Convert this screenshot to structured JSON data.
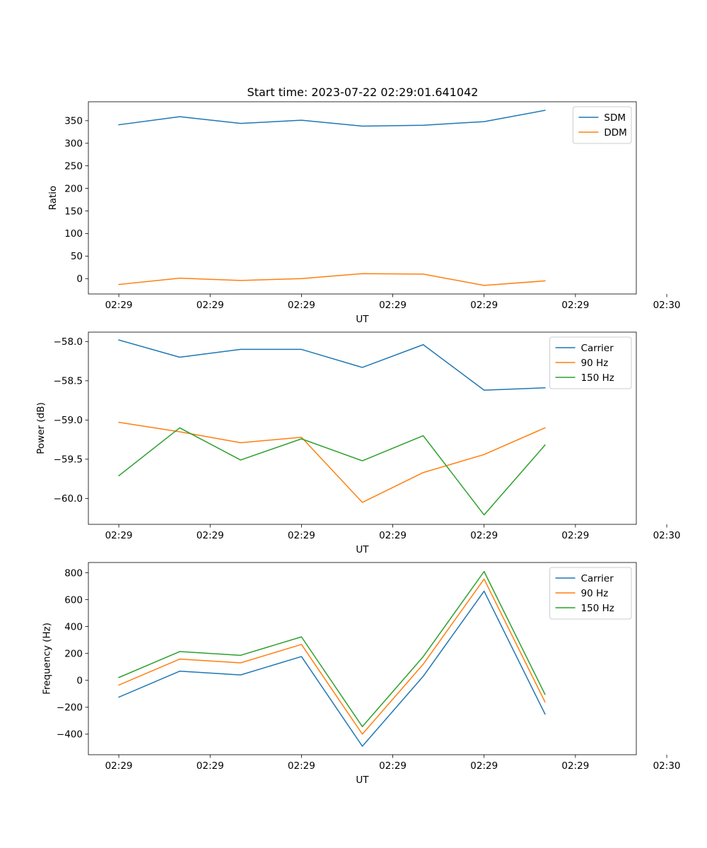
{
  "figure": {
    "title": "Start time: 2023-07-22 02:29:01.641042"
  },
  "chart_data": [
    {
      "type": "line",
      "title": "",
      "xlabel": "UT",
      "ylabel": "Ratio",
      "xtick_labels": [
        "02:29",
        "02:29",
        "02:29",
        "02:29",
        "02:29",
        "02:29",
        "02:30"
      ],
      "xlim": [
        -0.5,
        8.5
      ],
      "xticks": [
        0,
        1.5,
        3,
        4.5,
        6,
        7.5,
        9
      ],
      "ylim": [
        -34,
        392
      ],
      "yticks": [
        0,
        50,
        100,
        150,
        200,
        250,
        300,
        350
      ],
      "ytick_labels": [
        "0",
        "50",
        "100",
        "150",
        "200",
        "250",
        "300",
        "350"
      ],
      "legend_position": "top-right",
      "x": [
        0,
        1,
        2,
        3,
        4,
        5,
        6,
        7
      ],
      "series": [
        {
          "name": "SDM",
          "color": "#1f77b4",
          "values": [
            341,
            359,
            344,
            351,
            338,
            340,
            348,
            373
          ]
        },
        {
          "name": "DDM",
          "color": "#ff7f0e",
          "values": [
            -13,
            1,
            -4,
            0,
            11,
            10,
            -15,
            -5
          ]
        }
      ]
    },
    {
      "type": "line",
      "title": "",
      "xlabel": "UT",
      "ylabel": "Power (dB)",
      "xtick_labels": [
        "02:29",
        "02:29",
        "02:29",
        "02:29",
        "02:29",
        "02:29",
        "02:30"
      ],
      "xlim": [
        -0.5,
        8.5
      ],
      "xticks": [
        0,
        1.5,
        3,
        4.5,
        6,
        7.5,
        9
      ],
      "ylim": [
        -60.33,
        -57.88
      ],
      "yticks": [
        -60.0,
        -59.5,
        -59.0,
        -58.5,
        -58.0
      ],
      "ytick_labels": [
        "−60.0",
        "−59.5",
        "−59.0",
        "−58.5",
        "−58.0"
      ],
      "legend_position": "top-right",
      "x": [
        0,
        1,
        2,
        3,
        4,
        5,
        6,
        7
      ],
      "series": [
        {
          "name": "Carrier",
          "color": "#1f77b4",
          "values": [
            -57.98,
            -58.2,
            -58.1,
            -58.1,
            -58.33,
            -58.04,
            -58.62,
            -58.59
          ]
        },
        {
          "name": "90 Hz",
          "color": "#ff7f0e",
          "values": [
            -59.03,
            -59.15,
            -59.29,
            -59.22,
            -60.05,
            -59.67,
            -59.44,
            -59.1
          ]
        },
        {
          "name": "150 Hz",
          "color": "#2ca02c",
          "values": [
            -59.71,
            -59.1,
            -59.51,
            -59.24,
            -59.52,
            -59.2,
            -60.21,
            -59.32
          ]
        }
      ]
    },
    {
      "type": "line",
      "title": "",
      "xlabel": "UT",
      "ylabel": "Frequency (Hz)",
      "xtick_labels": [
        "02:29",
        "02:29",
        "02:29",
        "02:29",
        "02:29",
        "02:29",
        "02:30"
      ],
      "xlim": [
        -0.5,
        8.5
      ],
      "xticks": [
        0,
        1.5,
        3,
        4.5,
        6,
        7.5,
        9
      ],
      "ylim": [
        -553,
        876
      ],
      "yticks": [
        -400,
        -200,
        0,
        200,
        400,
        600,
        800
      ],
      "ytick_labels": [
        "−400",
        "−200",
        "0",
        "200",
        "400",
        "600",
        "800"
      ],
      "legend_position": "top-right",
      "x": [
        0,
        1,
        2,
        3,
        4,
        5,
        6,
        7
      ],
      "series": [
        {
          "name": "Carrier",
          "color": "#1f77b4",
          "values": [
            -125,
            68,
            40,
            177,
            -490,
            30,
            663,
            -250
          ]
        },
        {
          "name": "90 Hz",
          "color": "#ff7f0e",
          "values": [
            -35,
            158,
            130,
            267,
            -400,
            120,
            753,
            -160
          ]
        },
        {
          "name": "150 Hz",
          "color": "#2ca02c",
          "values": [
            21,
            214,
            186,
            323,
            -344,
            176,
            809,
            -104
          ]
        }
      ]
    }
  ]
}
